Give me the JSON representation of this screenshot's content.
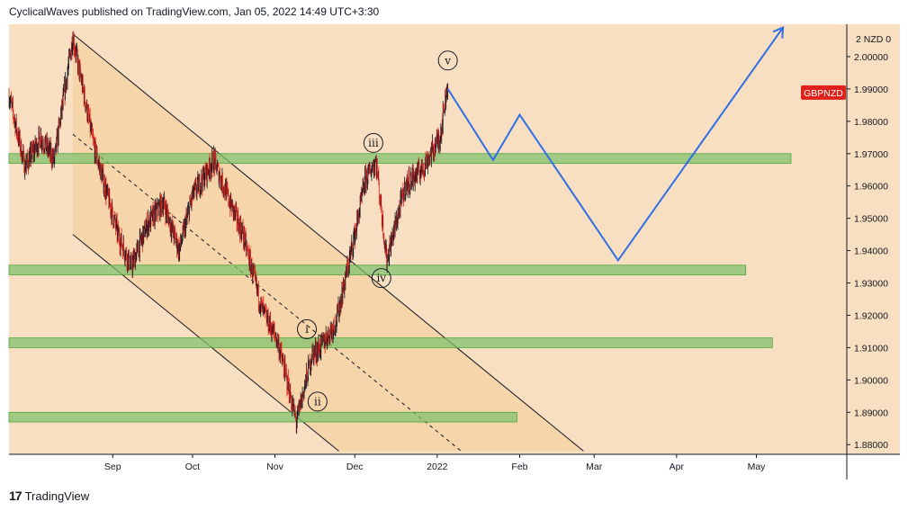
{
  "header": {
    "text": "CyclicalWaves published on TradingView.com, Jan 05, 2022 14:49 UTC+3:30"
  },
  "footer": {
    "logo": "17",
    "brand": "TradingView"
  },
  "symbol_badge": "GBPNZD",
  "colors": {
    "background": "#f9dfc2",
    "up": "#131722",
    "down": "#e0201b",
    "zone": "#7dc26c",
    "channel_fill": "#f5c98f",
    "projection": "#2f6fe6",
    "badge": "#e0201b"
  },
  "chart_data": {
    "type": "candlestick",
    "instrument": "GBPNZD",
    "y_axis": {
      "unit_label": "2 NZD 0",
      "ticks": [
        "2.00000",
        "1.99000",
        "1.98000",
        "1.97000",
        "1.96000",
        "1.95000",
        "1.94000",
        "1.93000",
        "1.92000",
        "1.91000",
        "1.90000",
        "1.89000",
        "1.88000"
      ],
      "range": [
        1.877,
        2.01
      ]
    },
    "x_axis": {
      "ticks": [
        "Sep",
        "Oct",
        "Nov",
        "Dec",
        "2022",
        "Feb",
        "Mar",
        "Apr",
        "May"
      ],
      "tick_dates": [
        "2021-09-01",
        "2021-10-01",
        "2021-11-01",
        "2021-12-01",
        "2022-01-01",
        "2022-02-01",
        "2022-03-01",
        "2022-04-01",
        "2022-05-01"
      ],
      "range": [
        "2021-07-24",
        "2022-06-04"
      ]
    },
    "price_path": [
      {
        "date": "2021-07-24",
        "price": 1.988
      },
      {
        "date": "2021-07-30",
        "price": 1.966
      },
      {
        "date": "2021-08-05",
        "price": 1.975
      },
      {
        "date": "2021-08-10",
        "price": 1.968
      },
      {
        "date": "2021-08-17",
        "price": 2.006
      },
      {
        "date": "2021-08-25",
        "price": 1.972
      },
      {
        "date": "2021-09-03",
        "price": 1.945
      },
      {
        "date": "2021-09-08",
        "price": 1.935
      },
      {
        "date": "2021-09-14",
        "price": 1.948
      },
      {
        "date": "2021-09-20",
        "price": 1.955
      },
      {
        "date": "2021-09-26",
        "price": 1.94
      },
      {
        "date": "2021-10-01",
        "price": 1.957
      },
      {
        "date": "2021-10-09",
        "price": 1.968
      },
      {
        "date": "2021-10-15",
        "price": 1.955
      },
      {
        "date": "2021-10-20",
        "price": 1.945
      },
      {
        "date": "2021-10-27",
        "price": 1.922
      },
      {
        "date": "2021-11-02",
        "price": 1.912
      },
      {
        "date": "2021-11-06",
        "price": 1.898
      },
      {
        "date": "2021-11-09",
        "price": 1.887
      },
      {
        "date": "2021-11-15",
        "price": 1.908
      },
      {
        "date": "2021-11-18",
        "price": 1.91
      },
      {
        "date": "2021-11-24",
        "price": 1.918
      },
      {
        "date": "2021-12-01",
        "price": 1.945
      },
      {
        "date": "2021-12-05",
        "price": 1.962
      },
      {
        "date": "2021-12-09",
        "price": 1.968
      },
      {
        "date": "2021-12-13",
        "price": 1.937
      },
      {
        "date": "2021-12-20",
        "price": 1.96
      },
      {
        "date": "2021-12-27",
        "price": 1.966
      },
      {
        "date": "2022-01-02",
        "price": 1.975
      },
      {
        "date": "2022-01-05",
        "price": 1.992
      }
    ],
    "series": [
      {
        "name": "projection",
        "points": [
          {
            "date": "2022-01-05",
            "price": 1.99
          },
          {
            "date": "2022-01-22",
            "price": 1.968
          },
          {
            "date": "2022-02-01",
            "price": 1.982
          },
          {
            "date": "2022-03-10",
            "price": 1.937
          },
          {
            "date": "2022-05-11",
            "price": 2.009
          }
        ]
      }
    ],
    "zones": [
      {
        "from": "2021-07-24",
        "to": "2022-05-14",
        "low": 1.967,
        "high": 1.97
      },
      {
        "from": "2021-07-24",
        "to": "2022-04-27",
        "low": 1.9325,
        "high": 1.9355
      },
      {
        "from": "2021-07-24",
        "to": "2022-05-07",
        "low": 1.91,
        "high": 1.913
      },
      {
        "from": "2021-07-24",
        "to": "2022-01-31",
        "low": 1.887,
        "high": 1.89
      }
    ],
    "channel": {
      "upper": [
        {
          "date": "2021-08-17",
          "price": 2.007
        },
        {
          "date": "2022-02-25",
          "price": 1.878
        }
      ],
      "lower": [
        {
          "date": "2021-08-17",
          "price": 1.945
        },
        {
          "date": "2021-11-25",
          "price": 1.878
        }
      ],
      "mid": [
        {
          "date": "2021-08-17",
          "price": 1.976
        },
        {
          "date": "2022-01-10",
          "price": 1.878
        }
      ]
    },
    "wave_labels": [
      {
        "label": "v",
        "date": "2022-01-05",
        "price": 1.9988
      },
      {
        "label": "iii",
        "date": "2021-12-08",
        "price": 1.9733
      },
      {
        "label": "iv",
        "date": "2021-12-11",
        "price": 1.9315
      },
      {
        "label": "i",
        "date": "2021-11-13",
        "price": 1.9157
      },
      {
        "label": "ii",
        "date": "2021-11-17",
        "price": 1.8933
      }
    ]
  }
}
